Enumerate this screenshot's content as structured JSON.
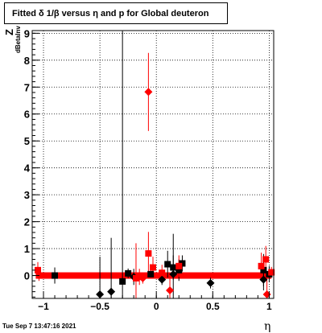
{
  "title": "Fitted δ 1/β versus η and p for Global deuteron",
  "datestamp": "Tue Sep  7 13:47:16 2021",
  "chart_data": {
    "type": "scatter",
    "title": "Fitted δ 1/β versus η and p for Global deuteron",
    "xlabel": "η",
    "ylabel_main": "Z",
    "ylabel_sub": "dBetaInv",
    "xlim": [
      -1.1,
      1.04
    ],
    "ylim": [
      -0.85,
      9.1
    ],
    "grid": true,
    "xticks": [
      -1,
      -0.5,
      0,
      0.5,
      1
    ],
    "xtick_labels": [
      "−1",
      "−0.5",
      "0",
      "0.5",
      "1"
    ],
    "yticks": [
      0,
      1,
      2,
      3,
      4,
      5,
      6,
      7,
      8,
      9
    ],
    "ytick_labels": [
      "0",
      "1",
      "2",
      "3",
      "4",
      "5",
      "6",
      "7",
      "8",
      "9"
    ],
    "series": [
      {
        "color": "#000000",
        "marker": "square",
        "points": [
          {
            "x": -0.3,
            "y": -0.22,
            "err": 9.3,
            "xerr": 0.02
          },
          {
            "x": -0.25,
            "y": 0.08,
            "err": 0.18,
            "xerr": 0.02
          },
          {
            "x": -0.05,
            "y": 0.05,
            "err": 0.12,
            "xerr": 0.02
          },
          {
            "x": 0.1,
            "y": 0.42,
            "err": 0.5,
            "xerr": 0.02
          },
          {
            "x": 0.15,
            "y": 0.3,
            "err": 0.45,
            "xerr": 0.02
          },
          {
            "x": 0.2,
            "y": 0.2,
            "err": 0.4,
            "xerr": 0.02
          },
          {
            "x": 0.23,
            "y": 0.45,
            "err": 0.3,
            "xerr": 0.02
          },
          {
            "x": -0.9,
            "y": 0.0,
            "err": 0.3,
            "xerr": 0.02
          },
          {
            "x": 0.95,
            "y": 0.2,
            "err": 0.6,
            "xerr": 0.02
          },
          {
            "x": 1.0,
            "y": 0.05,
            "err": 0.3,
            "xerr": 0.02
          }
        ]
      },
      {
        "color": "#000000",
        "marker": "diamond",
        "points": [
          {
            "x": -0.5,
            "y": -0.7,
            "err": 1.4
          },
          {
            "x": -0.4,
            "y": -0.6,
            "err": 2.0
          },
          {
            "x": -0.2,
            "y": -0.05,
            "err": 0.3
          },
          {
            "x": 0.05,
            "y": -0.15,
            "err": 0.2
          },
          {
            "x": 0.15,
            "y": 0.05,
            "err": 1.5
          },
          {
            "x": 0.48,
            "y": -0.28,
            "err": 0.2
          },
          {
            "x": 0.95,
            "y": -0.15,
            "err": 0.4
          }
        ]
      },
      {
        "color": "#ff0000",
        "marker": "square",
        "points": [
          {
            "x": -1.05,
            "y": 0.2,
            "err": 0.3
          },
          {
            "x": -1.04,
            "y": 0.0,
            "err": 0.2
          },
          {
            "x": -0.18,
            "y": -0.1,
            "err": 1.3
          },
          {
            "x": -0.15,
            "y": -0.05,
            "err": 0.3
          },
          {
            "x": -0.07,
            "y": 0.82,
            "err": 0.8
          },
          {
            "x": -0.03,
            "y": 0.3,
            "err": 0.4
          },
          {
            "x": 0.05,
            "y": 0.1,
            "err": 0.3
          },
          {
            "x": 0.2,
            "y": 0.35,
            "err": 0.4
          },
          {
            "x": 0.93,
            "y": 0.35,
            "err": 0.5
          },
          {
            "x": 0.97,
            "y": 0.6,
            "err": 0.5
          },
          {
            "x": 1.02,
            "y": 0.12,
            "err": 0.2
          }
        ]
      },
      {
        "color": "#ff0000",
        "marker": "diamond",
        "points": [
          {
            "x": -0.07,
            "y": 6.82,
            "err": 1.45
          },
          {
            "x": 0.12,
            "y": -0.55,
            "err": 0.5
          },
          {
            "x": -0.12,
            "y": -0.1,
            "err": 0.2
          },
          {
            "x": 0.98,
            "y": -0.7,
            "err": 0.6
          }
        ]
      }
    ],
    "band": {
      "color": "#ff0000",
      "xmin": -1.05,
      "xmax": 1.02,
      "y": 0.0
    }
  }
}
